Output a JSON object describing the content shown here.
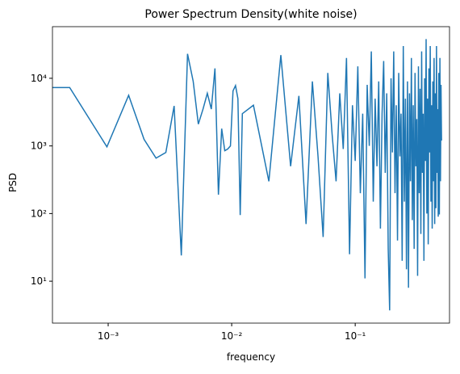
{
  "chart_data": {
    "type": "line",
    "title": "Power Spectrum Density(white noise)",
    "xlabel": "frequency",
    "ylabel": "PSD",
    "log_x": true,
    "log_y": true,
    "color": "#1f77b4",
    "xlim": [
      0.000354,
      0.58
    ],
    "ylim": [
      2.4,
      58000
    ],
    "xticks": [
      {
        "value": 0.001,
        "label": "10⁻³"
      },
      {
        "value": 0.01,
        "label": "10⁻²"
      },
      {
        "value": 0.1,
        "label": "10⁻¹"
      }
    ],
    "yticks": [
      {
        "value": 10,
        "label": "10¹"
      },
      {
        "value": 100,
        "label": "10²"
      },
      {
        "value": 1000,
        "label": "10³"
      },
      {
        "value": 10000,
        "label": "10⁴"
      }
    ],
    "x": [
      0.000244,
      0.000488,
      0.000977,
      0.001465,
      0.001953,
      0.002441,
      0.00293,
      0.00342,
      0.00391,
      0.00439,
      0.00488,
      0.00537,
      0.00586,
      0.00635,
      0.00684,
      0.00732,
      0.00781,
      0.0083,
      0.00879,
      0.00928,
      0.00977,
      0.01025,
      0.01074,
      0.01123,
      0.01172,
      0.0122,
      0.015,
      0.02,
      0.025,
      0.03,
      0.035,
      0.04,
      0.045,
      0.05,
      0.055,
      0.06,
      0.065,
      0.07,
      0.075,
      0.08,
      0.085,
      0.09,
      0.095,
      0.1,
      0.105,
      0.11,
      0.115,
      0.12,
      0.125,
      0.13,
      0.135,
      0.14,
      0.145,
      0.15,
      0.155,
      0.16,
      0.165,
      0.17,
      0.175,
      0.18,
      0.185,
      0.19,
      0.195,
      0.2,
      0.205,
      0.21,
      0.215,
      0.22,
      0.225,
      0.23,
      0.235,
      0.24,
      0.245,
      0.25,
      0.255,
      0.26,
      0.265,
      0.27,
      0.275,
      0.28,
      0.285,
      0.29,
      0.295,
      0.3,
      0.305,
      0.31,
      0.315,
      0.32,
      0.325,
      0.33,
      0.335,
      0.34,
      0.345,
      0.35,
      0.355,
      0.36,
      0.365,
      0.37,
      0.375,
      0.38,
      0.385,
      0.39,
      0.395,
      0.4,
      0.405,
      0.41,
      0.415,
      0.42,
      0.425,
      0.43,
      0.435,
      0.44,
      0.445,
      0.45,
      0.455,
      0.46,
      0.465,
      0.47,
      0.475,
      0.48,
      0.485,
      0.49,
      0.495,
      0.5
    ],
    "values": [
      7300,
      7300,
      970,
      5600,
      1250,
      660,
      800,
      3900,
      24,
      23000,
      9000,
      2100,
      3500,
      6000,
      3500,
      14000,
      190,
      1800,
      850,
      900,
      1000,
      6500,
      7800,
      5000,
      95,
      3000,
      4000,
      300,
      22000,
      500,
      5500,
      70,
      9000,
      700,
      45,
      12000,
      1500,
      300,
      6000,
      900,
      20000,
      25,
      4000,
      600,
      15000,
      200,
      3000,
      11,
      8000,
      1000,
      25000,
      150,
      5000,
      500,
      9000,
      60,
      3000,
      18000,
      400,
      6000,
      30,
      3.7,
      10000,
      800,
      25000,
      200,
      4000,
      40,
      12000,
      700,
      3000,
      20,
      30000,
      150,
      5000,
      15,
      9000,
      8,
      6000,
      300,
      20000,
      80,
      4000,
      30,
      12000,
      500,
      2500,
      12,
      15000,
      200,
      7000,
      50,
      25000,
      400,
      3000,
      20,
      10000,
      600,
      38000,
      100,
      5000,
      35,
      14000,
      800,
      30000,
      150,
      4000,
      60,
      9000,
      300,
      20000,
      70,
      6000,
      120,
      30000,
      400,
      3500,
      90,
      12000,
      97,
      20000,
      300,
      8000,
      1200
    ]
  }
}
